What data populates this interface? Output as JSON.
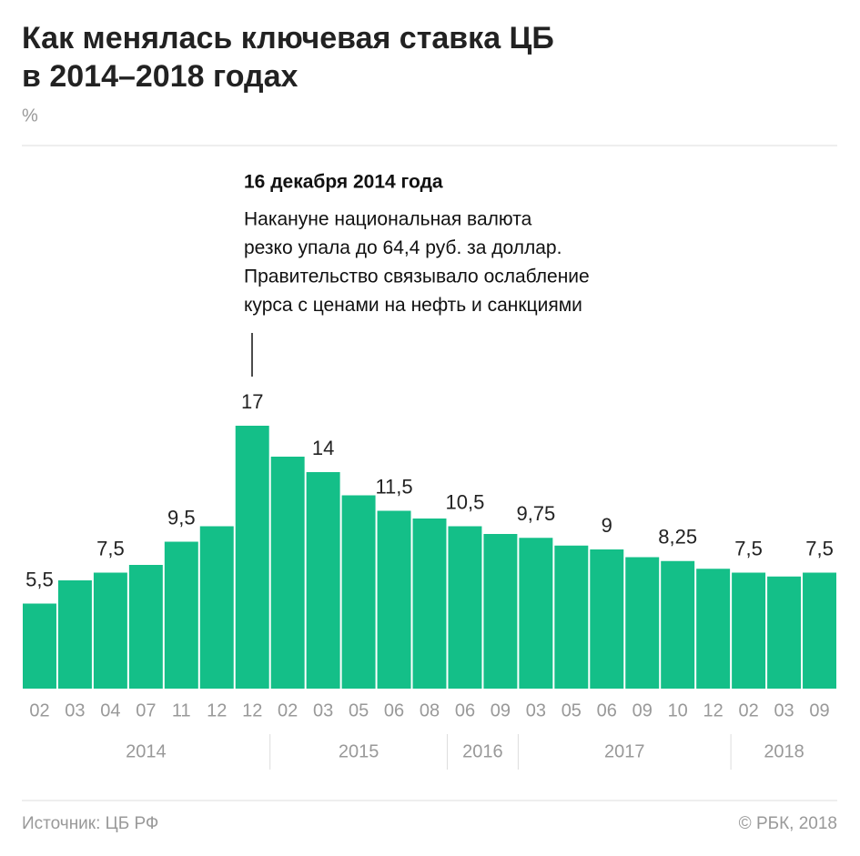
{
  "chart_data": {
    "type": "bar",
    "title": [
      "Как менялась ключевая ставка ЦБ",
      "в 2014–2018 годах"
    ],
    "unit": "%",
    "annotation": {
      "title": "16 декабря 2014 года",
      "lines": [
        "Накануне национальная валюта",
        "резко упала до 64,4 руб. за доллар.",
        "Правительство связывало ослабление",
        "курса с ценами на нефть и санкциями"
      ]
    },
    "categories": [
      "02",
      "03",
      "04",
      "07",
      "11",
      "12",
      "12",
      "02",
      "03",
      "05",
      "06",
      "08",
      "06",
      "09",
      "03",
      "05",
      "06",
      "09",
      "10",
      "12",
      "02",
      "03",
      "09"
    ],
    "years": [
      "2014",
      "2014",
      "2014",
      "2014",
      "2014",
      "2014",
      "2014",
      "2015",
      "2015",
      "2015",
      "2015",
      "2015",
      "2016",
      "2016",
      "2017",
      "2017",
      "2017",
      "2017",
      "2017",
      "2017",
      "2018",
      "2018",
      "2018"
    ],
    "values": [
      5.5,
      7,
      7.5,
      8,
      9.5,
      10.5,
      17,
      15,
      14,
      12.5,
      11.5,
      11,
      10.5,
      10,
      9.75,
      9.25,
      9,
      8.5,
      8.25,
      7.75,
      7.5,
      7.25,
      7.5
    ],
    "value_labels": [
      "5,5",
      null,
      "7,5",
      null,
      "9,5",
      null,
      "17",
      null,
      "14",
      null,
      "11,5",
      null,
      "10,5",
      null,
      "9,75",
      null,
      "9",
      null,
      "8,25",
      null,
      "7,5",
      null,
      "7,5"
    ],
    "color": "#14bf88",
    "source": "Источник: ЦБ РФ",
    "credit": "© РБК, 2018"
  }
}
